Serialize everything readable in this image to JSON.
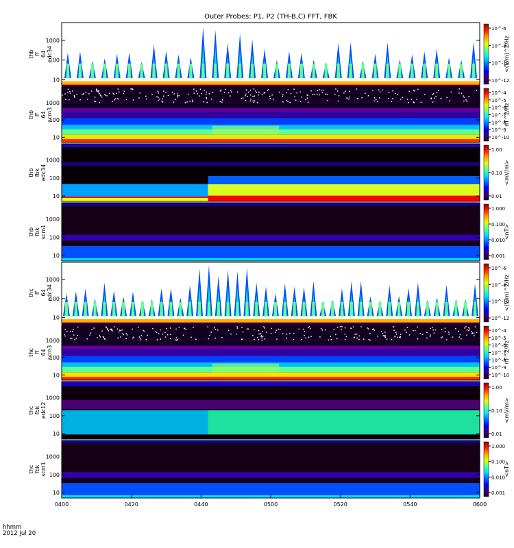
{
  "title": "Outer Probes: P1, P2 (TH-B,C) FFT, FBK",
  "footer": {
    "time_label": "hhmm",
    "date_label": "2012 Jul 20"
  },
  "x_axis": {
    "ticks": [
      "0400",
      "0420",
      "0440",
      "0500",
      "0520",
      "0540",
      "0600"
    ]
  },
  "chart_data": {
    "type": "heatmap",
    "title": "Outer Probes: P1, P2 (TH-B,C) FFT, FBK",
    "x_range": [
      "0400",
      "0600"
    ],
    "x_ticks": [
      "0400",
      "0420",
      "0440",
      "0500",
      "0520",
      "0540",
      "0600"
    ],
    "panels": [
      {
        "id": "thb-ff-edc34",
        "ylabel": [
          "thb",
          "ff",
          "64",
          "edc34"
        ],
        "yticks": [
          "10",
          "100",
          "1000"
        ],
        "cblabel": "<(V/m)^2/Hz",
        "cbticks": [
          "10^-6",
          "10^-8",
          "10^-10",
          "10^-12"
        ],
        "kind": "fft-e"
      },
      {
        "id": "thb-ff-scm3",
        "ylabel": [
          "thb",
          "ff",
          "64",
          "scm3"
        ],
        "yticks": [
          "10",
          "100",
          "1000"
        ],
        "cblabel": "nT^2/Hz",
        "cbticks": [
          "10^-4",
          "10^-5",
          "10^-6",
          "10^-7",
          "10^-8",
          "10^-9",
          "10^-10"
        ],
        "kind": "fft-b"
      },
      {
        "id": "thb-fbk-edc34",
        "ylabel": [
          "thb",
          "fbk",
          "edc34"
        ],
        "yticks": [
          "10",
          "100",
          "1000"
        ],
        "cblabel": "<mV/m>",
        "cbticks": [
          "1.00",
          "0.10",
          "0.01"
        ],
        "kind": "fbk-e"
      },
      {
        "id": "thb-fbk-scm1",
        "ylabel": [
          "thb",
          "fbk",
          "scm1"
        ],
        "yticks": [
          "10",
          "100",
          "1000"
        ],
        "cblabel": "<nT>",
        "cbticks": [
          "1.000",
          "0.100",
          "0.010",
          "0.001"
        ],
        "kind": "fbk-b"
      },
      {
        "id": "thc-ff-edc34",
        "ylabel": [
          "thc",
          "ff",
          "64",
          "edc34"
        ],
        "yticks": [
          "10",
          "100",
          "1000"
        ],
        "cblabel": "<(V/m)^2/Hz",
        "cbticks": [
          "10^-6",
          "10^-8",
          "10^-10",
          "10^-12"
        ],
        "kind": "fft-e"
      },
      {
        "id": "thc-ff-scm3",
        "ylabel": [
          "thc",
          "ff",
          "64",
          "scm3"
        ],
        "yticks": [
          "10",
          "100",
          "1000"
        ],
        "cblabel": "nT^2/Hz",
        "cbticks": [
          "10^-4",
          "10^-5",
          "10^-6",
          "10^-7",
          "10^-8",
          "10^-9",
          "10^-10"
        ],
        "kind": "fft-b"
      },
      {
        "id": "thc-fbk-edc12",
        "ylabel": [
          "thc",
          "fbk",
          "edc12"
        ],
        "yticks": [
          "10",
          "100",
          "1000"
        ],
        "cblabel": "<mV/m>",
        "cbticks": [
          "1.00",
          "0.10",
          "0.01"
        ],
        "kind": "fbk-e2"
      },
      {
        "id": "thc-fbk-scm1",
        "ylabel": [
          "thc",
          "fbk",
          "scm1"
        ],
        "yticks": [
          "10",
          "100",
          "1000"
        ],
        "cblabel": "<nT>",
        "cbticks": [
          "1.000",
          "0.100",
          "0.010",
          "0.001"
        ],
        "kind": "fbk-b"
      }
    ]
  }
}
